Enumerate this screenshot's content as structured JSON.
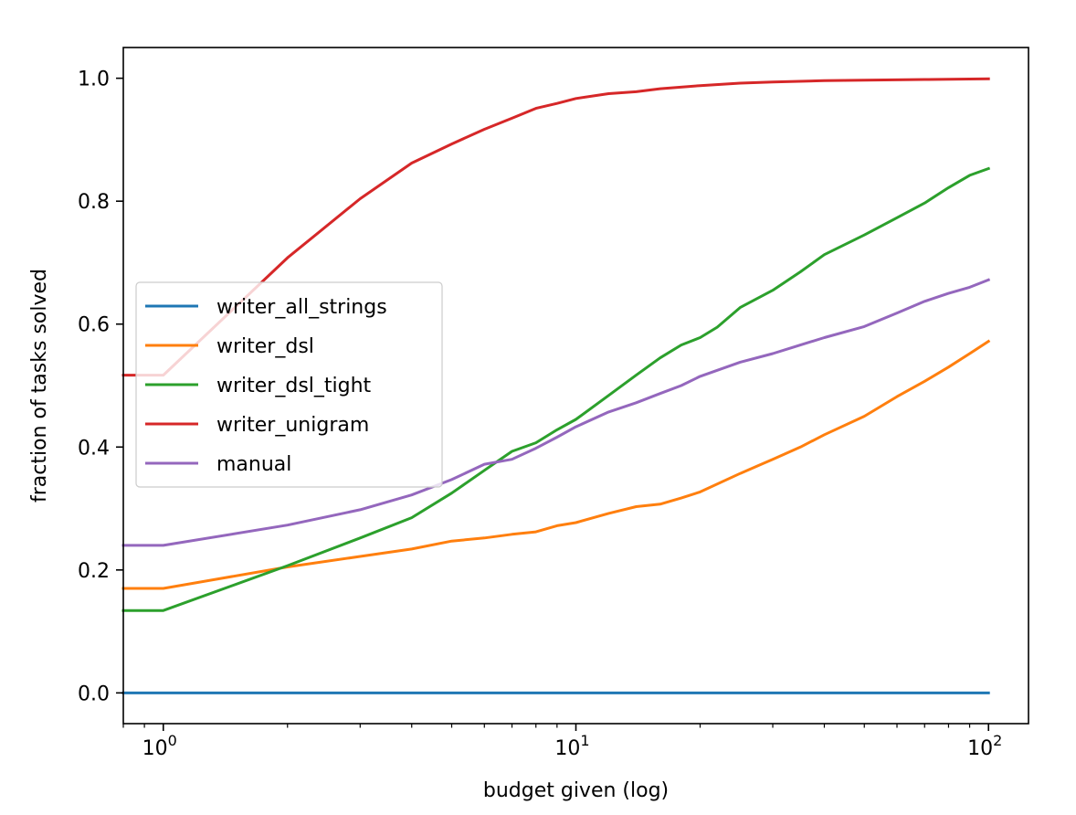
{
  "chart_data": {
    "type": "line",
    "title": "",
    "xlabel": "budget given (log)",
    "ylabel": "fraction of tasks solved",
    "xscale": "log",
    "xlim": [
      0.8,
      125
    ],
    "ylim": [
      -0.05,
      1.05
    ],
    "grid": false,
    "legend_position": "center-left",
    "xticks": [
      {
        "value": 1,
        "base": "10",
        "exp": "0"
      },
      {
        "value": 10,
        "base": "10",
        "exp": "1"
      },
      {
        "value": 100,
        "base": "10",
        "exp": "2"
      }
    ],
    "yticks": [
      {
        "value": 0.0,
        "label": "0.0"
      },
      {
        "value": 0.2,
        "label": "0.2"
      },
      {
        "value": 0.4,
        "label": "0.4"
      },
      {
        "value": 0.6,
        "label": "0.6"
      },
      {
        "value": 0.8,
        "label": "0.8"
      },
      {
        "value": 1.0,
        "label": "1.0"
      }
    ],
    "series": [
      {
        "name": "writer_all_strings",
        "color": "#1f77b4",
        "x": [
          0.8,
          1,
          2,
          5,
          10,
          20,
          50,
          100
        ],
        "y": [
          0.0,
          0.0,
          0.0,
          0.0,
          0.0,
          0.0,
          0.0,
          0.0
        ]
      },
      {
        "name": "writer_dsl",
        "color": "#ff7f0e",
        "x": [
          0.8,
          1,
          2,
          3,
          4,
          5,
          6,
          7,
          8,
          9,
          10,
          12,
          14,
          16,
          18,
          20,
          25,
          30,
          35,
          40,
          50,
          60,
          70,
          80,
          90,
          100
        ],
        "y": [
          0.17,
          0.17,
          0.205,
          0.222,
          0.234,
          0.247,
          0.252,
          0.258,
          0.262,
          0.272,
          0.277,
          0.292,
          0.303,
          0.307,
          0.317,
          0.327,
          0.357,
          0.38,
          0.4,
          0.42,
          0.45,
          0.482,
          0.507,
          0.53,
          0.552,
          0.572
        ]
      },
      {
        "name": "writer_dsl_tight",
        "color": "#2ca02c",
        "x": [
          0.8,
          1,
          2,
          3,
          4,
          5,
          6,
          7,
          8,
          9,
          10,
          12,
          14,
          16,
          18,
          20,
          22,
          25,
          30,
          35,
          40,
          50,
          60,
          70,
          80,
          90,
          100
        ],
        "y": [
          0.134,
          0.134,
          0.207,
          0.252,
          0.285,
          0.325,
          0.362,
          0.393,
          0.407,
          0.428,
          0.445,
          0.484,
          0.517,
          0.545,
          0.566,
          0.578,
          0.595,
          0.627,
          0.655,
          0.685,
          0.713,
          0.745,
          0.773,
          0.797,
          0.822,
          0.842,
          0.853
        ]
      },
      {
        "name": "writer_unigram",
        "color": "#d62728",
        "x": [
          0.8,
          1,
          2,
          3,
          4,
          5,
          6,
          7,
          8,
          9,
          10,
          12,
          14,
          16,
          20,
          25,
          30,
          40,
          50,
          70,
          100
        ],
        "y": [
          0.517,
          0.517,
          0.708,
          0.804,
          0.862,
          0.893,
          0.917,
          0.935,
          0.951,
          0.959,
          0.967,
          0.975,
          0.978,
          0.983,
          0.988,
          0.992,
          0.994,
          0.996,
          0.997,
          0.998,
          0.999
        ]
      },
      {
        "name": "manual",
        "color": "#9467bd",
        "x": [
          0.8,
          1,
          2,
          3,
          4,
          5,
          6,
          7,
          8,
          9,
          10,
          12,
          14,
          16,
          18,
          20,
          25,
          30,
          35,
          40,
          50,
          60,
          70,
          80,
          90,
          100
        ],
        "y": [
          0.24,
          0.24,
          0.273,
          0.298,
          0.322,
          0.347,
          0.372,
          0.38,
          0.398,
          0.416,
          0.433,
          0.457,
          0.472,
          0.487,
          0.5,
          0.515,
          0.538,
          0.552,
          0.566,
          0.578,
          0.596,
          0.618,
          0.637,
          0.65,
          0.66,
          0.672
        ]
      }
    ]
  }
}
